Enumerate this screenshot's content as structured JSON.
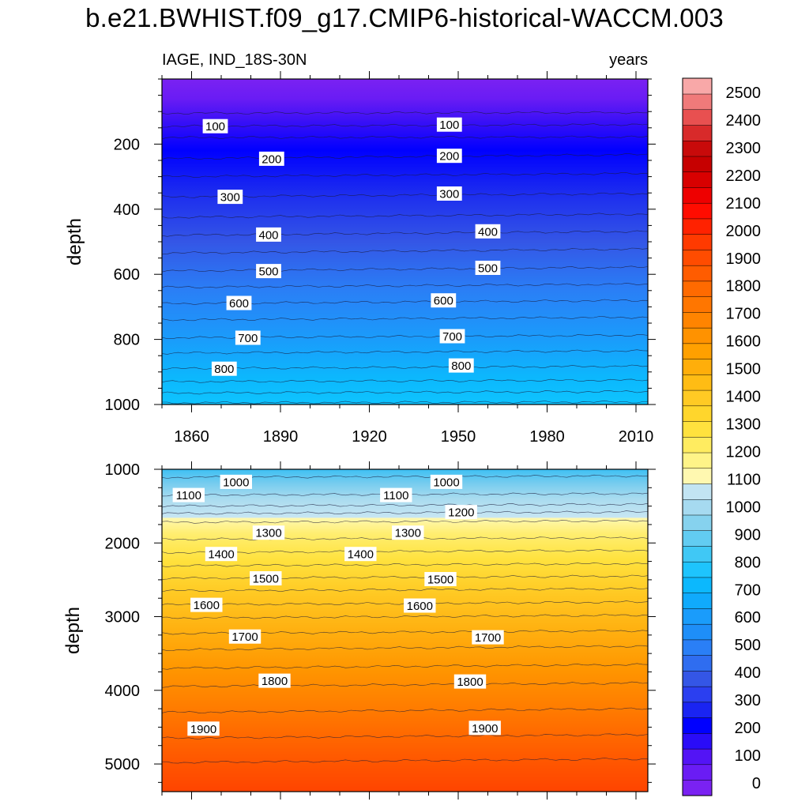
{
  "title": "b.e21.BWHIST.f09_g17.CMIP6-historical-WACCM.003",
  "variable_label": "IAGE, IND_18S-30N",
  "units_label": "years",
  "chart_data": [
    {
      "type": "contour",
      "panel": "upper",
      "ylabel": "depth",
      "xlim": [
        1850,
        2014
      ],
      "ylim": [
        1000,
        0
      ],
      "x_ticks": [
        1860,
        1890,
        1920,
        1950,
        1980,
        2010
      ],
      "y_ticks": [
        200,
        400,
        600,
        800,
        1000
      ],
      "contour_levels": [
        50,
        100,
        150,
        200,
        250,
        300,
        350,
        400,
        450,
        500,
        550,
        600,
        650,
        700,
        750,
        800,
        850,
        900,
        950
      ],
      "contours": [
        {
          "v": 50,
          "d": [
            105,
            103
          ]
        },
        {
          "v": 100,
          "d": [
            145,
            140
          ]
        },
        {
          "v": 150,
          "d": [
            180,
            178
          ]
        },
        {
          "v": 200,
          "d": [
            245,
            232
          ]
        },
        {
          "v": 250,
          "d": [
            300,
            290
          ]
        },
        {
          "v": 300,
          "d": [
            362,
            352
          ]
        },
        {
          "v": 350,
          "d": [
            425,
            415
          ]
        },
        {
          "v": 400,
          "d": [
            480,
            468
          ]
        },
        {
          "v": 450,
          "d": [
            535,
            522
          ]
        },
        {
          "v": 500,
          "d": [
            590,
            578
          ]
        },
        {
          "v": 550,
          "d": [
            640,
            630
          ]
        },
        {
          "v": 600,
          "d": [
            690,
            680
          ]
        },
        {
          "v": 650,
          "d": [
            740,
            732
          ]
        },
        {
          "v": 700,
          "d": [
            795,
            787
          ]
        },
        {
          "v": 750,
          "d": [
            842,
            835
          ]
        },
        {
          "v": 800,
          "d": [
            890,
            882
          ]
        },
        {
          "v": 850,
          "d": [
            930,
            925
          ]
        },
        {
          "v": 900,
          "d": [
            965,
            960
          ]
        },
        {
          "v": 950,
          "d": [
            995,
            992
          ]
        }
      ],
      "contour_labels": [
        {
          "text": "100",
          "x": 1868,
          "y": 145
        },
        {
          "text": "100",
          "x": 1947,
          "y": 140
        },
        {
          "text": "200",
          "x": 1887,
          "y": 245
        },
        {
          "text": "200",
          "x": 1947,
          "y": 236
        },
        {
          "text": "300",
          "x": 1873,
          "y": 362
        },
        {
          "text": "300",
          "x": 1947,
          "y": 352
        },
        {
          "text": "400",
          "x": 1886,
          "y": 478
        },
        {
          "text": "400",
          "x": 1960,
          "y": 468
        },
        {
          "text": "500",
          "x": 1886,
          "y": 590
        },
        {
          "text": "500",
          "x": 1960,
          "y": 580
        },
        {
          "text": "600",
          "x": 1876,
          "y": 688
        },
        {
          "text": "600",
          "x": 1945,
          "y": 680
        },
        {
          "text": "700",
          "x": 1879,
          "y": 795
        },
        {
          "text": "700",
          "x": 1948,
          "y": 790
        },
        {
          "text": "800",
          "x": 1871,
          "y": 890
        },
        {
          "text": "800",
          "x": 1951,
          "y": 880
        }
      ]
    },
    {
      "type": "contour",
      "panel": "lower",
      "ylabel": "depth",
      "xlim": [
        1850,
        2014
      ],
      "ylim": [
        5375,
        1000
      ],
      "y_ticks": [
        1000,
        2000,
        3000,
        4000,
        5000
      ],
      "contour_levels": [
        1050,
        1100,
        1150,
        1200,
        1250,
        1300,
        1350,
        1400,
        1450,
        1500,
        1550,
        1600,
        1650,
        1700,
        1750,
        1800,
        1850,
        1900,
        1950
      ],
      "contours": [
        {
          "v": 1050,
          "d": [
            1110,
            1090
          ]
        },
        {
          "v": 1100,
          "d": [
            1350,
            1330
          ]
        },
        {
          "v": 1150,
          "d": [
            1500,
            1475
          ]
        },
        {
          "v": 1200,
          "d": [
            1600,
            1580
          ]
        },
        {
          "v": 1250,
          "d": [
            1720,
            1700
          ]
        },
        {
          "v": 1300,
          "d": [
            1950,
            1930
          ]
        },
        {
          "v": 1350,
          "d": [
            2130,
            2100
          ]
        },
        {
          "v": 1400,
          "d": [
            2310,
            2280
          ]
        },
        {
          "v": 1450,
          "d": [
            2480,
            2450
          ]
        },
        {
          "v": 1500,
          "d": [
            2650,
            2620
          ]
        },
        {
          "v": 1550,
          "d": [
            2840,
            2800
          ]
        },
        {
          "v": 1600,
          "d": [
            3020,
            2980
          ]
        },
        {
          "v": 1650,
          "d": [
            3230,
            3190
          ]
        },
        {
          "v": 1700,
          "d": [
            3450,
            3400
          ]
        },
        {
          "v": 1750,
          "d": [
            3700,
            3650
          ]
        },
        {
          "v": 1800,
          "d": [
            3950,
            3900
          ]
        },
        {
          "v": 1850,
          "d": [
            4300,
            4250
          ]
        },
        {
          "v": 1900,
          "d": [
            4650,
            4600
          ]
        },
        {
          "v": 1950,
          "d": [
            4980,
            4930
          ]
        }
      ],
      "contour_labels": [
        {
          "text": "1000",
          "x": 1875,
          "y": 1170
        },
        {
          "text": "1000",
          "x": 1946,
          "y": 1170
        },
        {
          "text": "1100",
          "x": 1859,
          "y": 1350
        },
        {
          "text": "1100",
          "x": 1929,
          "y": 1350
        },
        {
          "text": "1200",
          "x": 1951,
          "y": 1580
        },
        {
          "text": "1300",
          "x": 1886,
          "y": 1860
        },
        {
          "text": "1300",
          "x": 1933,
          "y": 1860
        },
        {
          "text": "1400",
          "x": 1870,
          "y": 2150
        },
        {
          "text": "1400",
          "x": 1917,
          "y": 2150
        },
        {
          "text": "1500",
          "x": 1885,
          "y": 2480
        },
        {
          "text": "1500",
          "x": 1944,
          "y": 2490
        },
        {
          "text": "1600",
          "x": 1865,
          "y": 2840
        },
        {
          "text": "1600",
          "x": 1937,
          "y": 2850
        },
        {
          "text": "1700",
          "x": 1878,
          "y": 3270
        },
        {
          "text": "1700",
          "x": 1960,
          "y": 3280
        },
        {
          "text": "1800",
          "x": 1888,
          "y": 3870
        },
        {
          "text": "1800",
          "x": 1954,
          "y": 3880
        },
        {
          "text": "1900",
          "x": 1864,
          "y": 4520
        },
        {
          "text": "1900",
          "x": 1959,
          "y": 4510
        }
      ]
    }
  ],
  "colorbar": {
    "labels": [
      "0",
      "100",
      "200",
      "300",
      "400",
      "500",
      "600",
      "700",
      "800",
      "900",
      "1000",
      "1100",
      "1200",
      "1300",
      "1400",
      "1500",
      "1600",
      "1700",
      "1800",
      "1900",
      "2000",
      "2100",
      "2200",
      "2300",
      "2400",
      "2500"
    ],
    "colors": [
      "#7a22f2",
      "#6a1cf4",
      "#5314f5",
      "#2a0cf8",
      "#0000ff",
      "#1a24f2",
      "#2b3ff0",
      "#3456e6",
      "#2f6df0",
      "#2a7ff6",
      "#1e8ef8",
      "#1a9cfb",
      "#10aafc",
      "#0cb8fd",
      "#1ec4fd",
      "#40c8f5",
      "#62ccf2",
      "#86d2ee",
      "#a6daf0",
      "#c2e4f3",
      "#fff8b0",
      "#fff488",
      "#ffec60",
      "#ffe23e",
      "#ffd62c",
      "#ffca24",
      "#ffbc14",
      "#ffae0a",
      "#ffa000",
      "#ff9200",
      "#ff8400",
      "#ff7600",
      "#ff6a00",
      "#ff5c00",
      "#ff4c00",
      "#ff3a00",
      "#ff2200",
      "#ff0c00",
      "#ee0000",
      "#d80000",
      "#c60000",
      "#c80a0a",
      "#d82a2a",
      "#e85050",
      "#f07a7a",
      "#f8a8a8"
    ]
  }
}
